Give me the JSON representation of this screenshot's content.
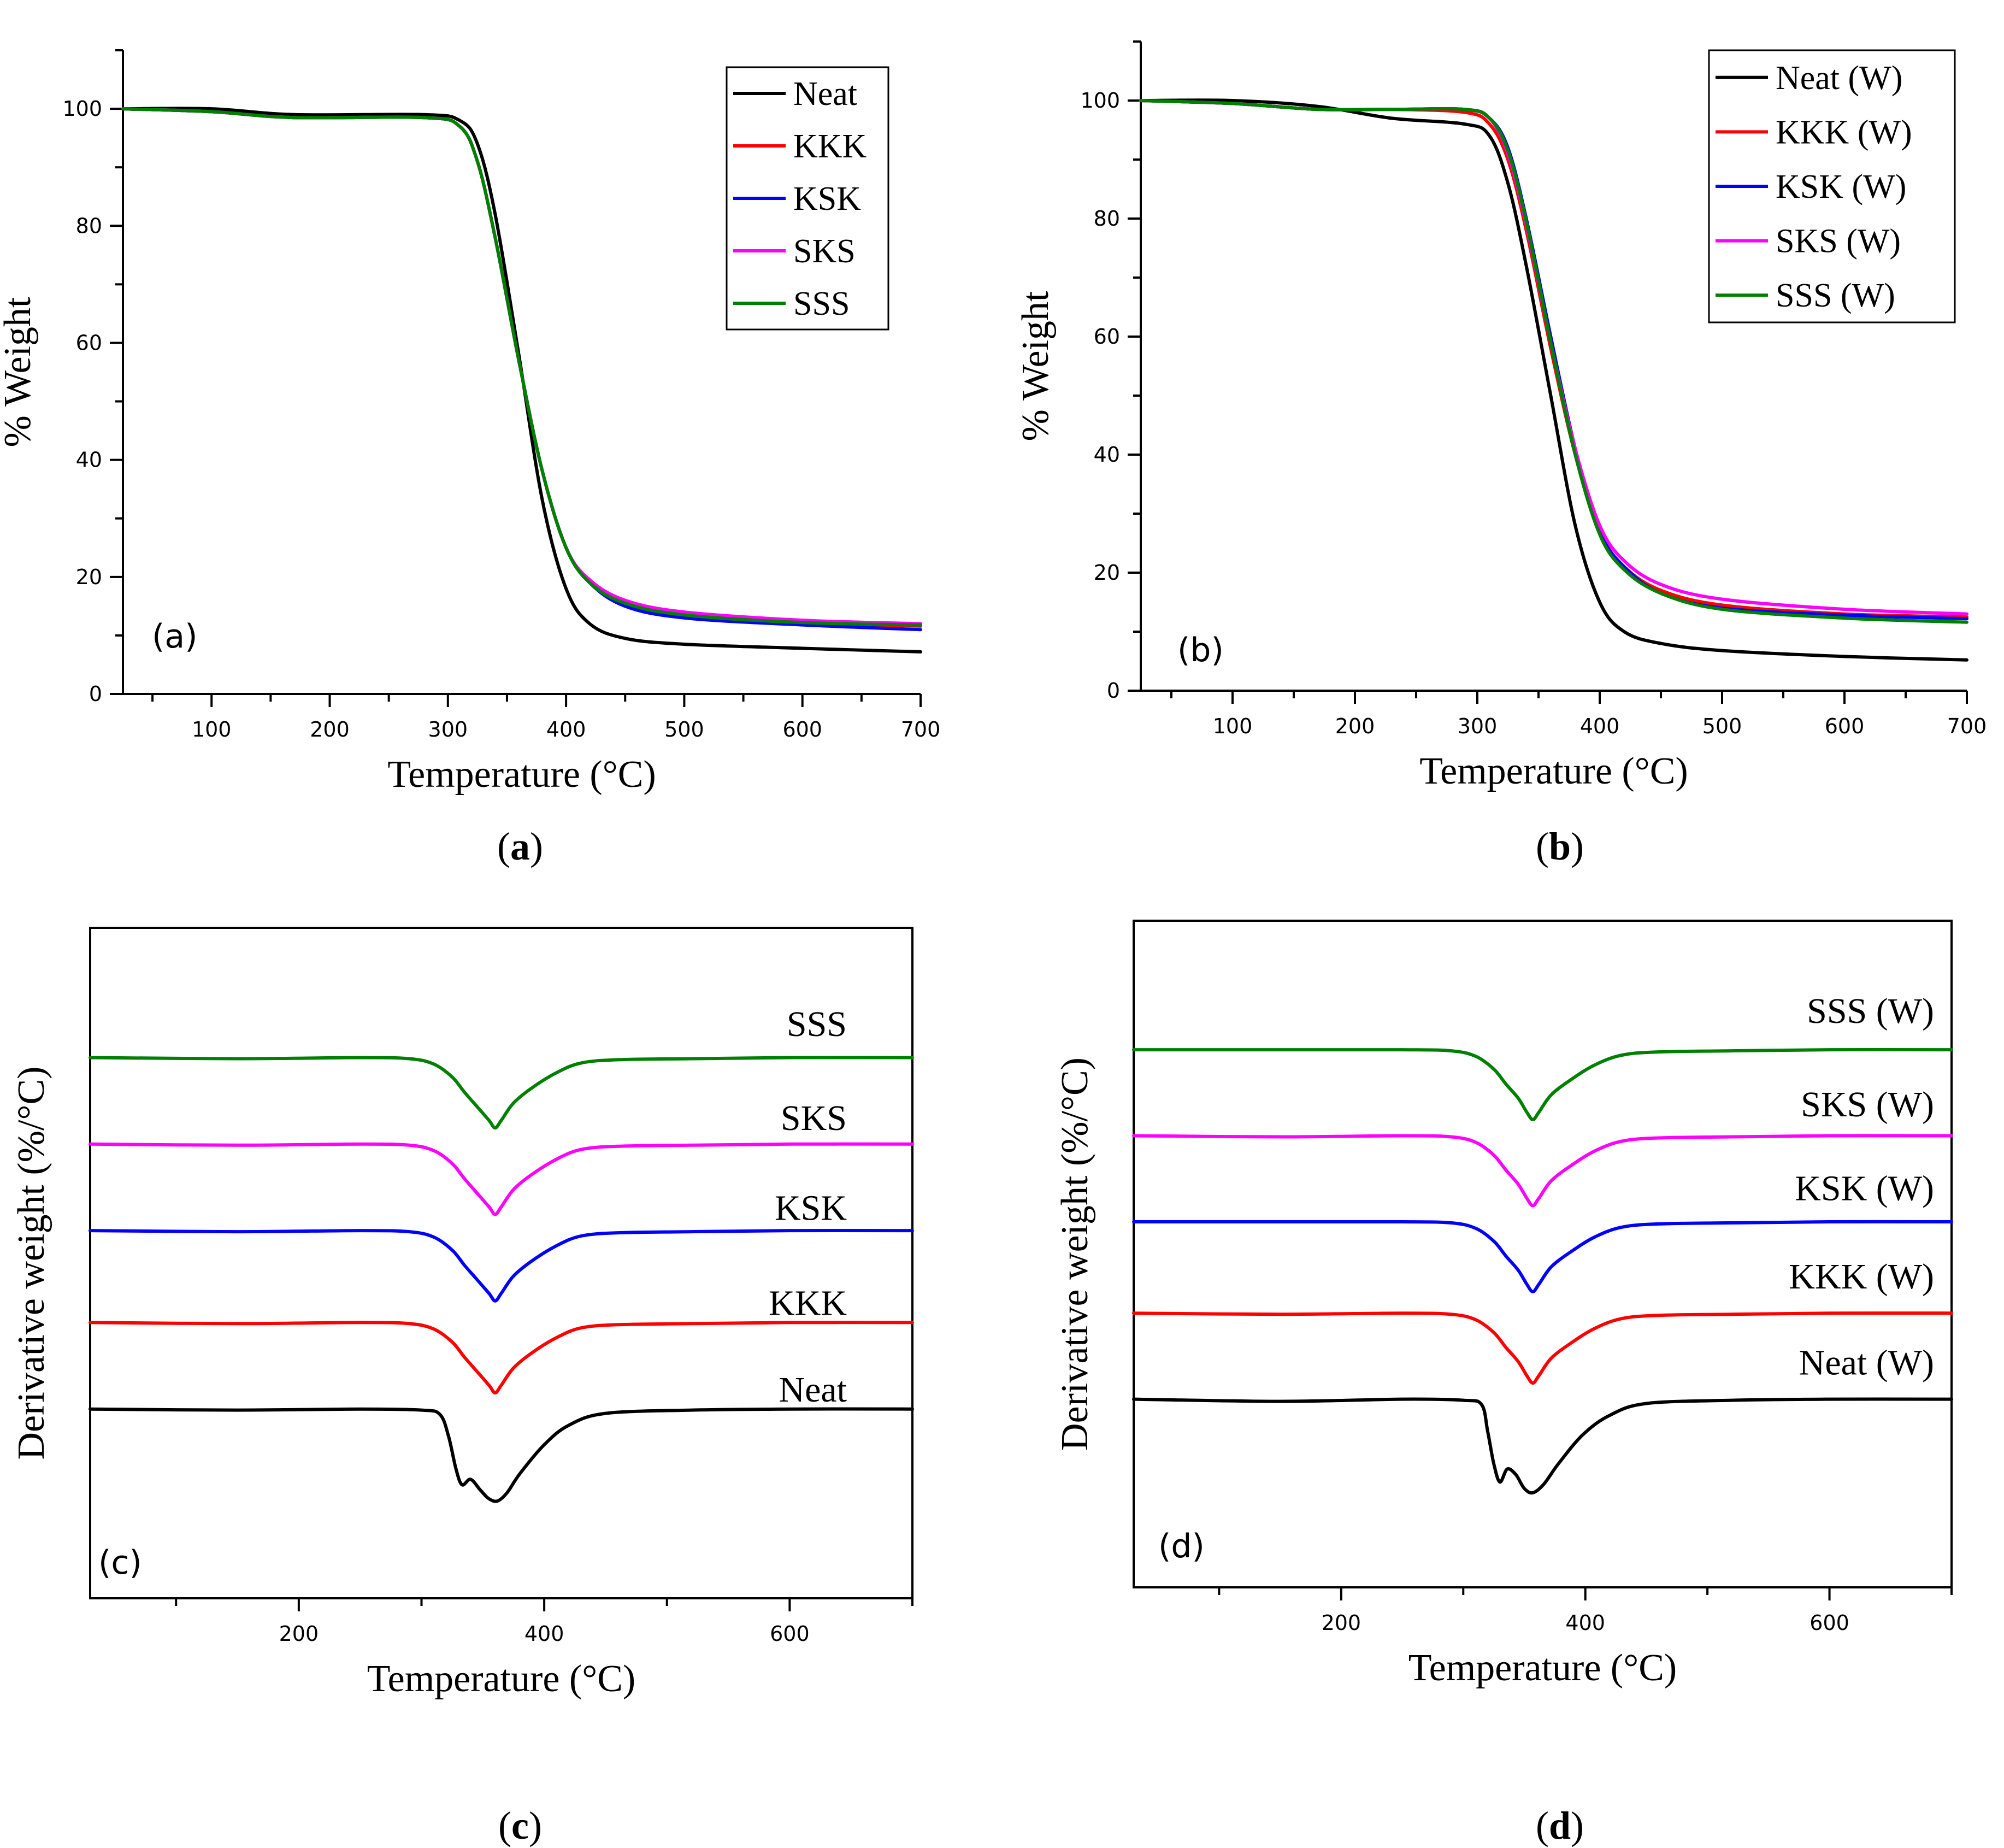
{
  "figure": {
    "captions": [
      {
        "paren_open": "(",
        "letter": "a",
        "paren_close": ")"
      },
      {
        "paren_open": "(",
        "letter": "b",
        "paren_close": ")"
      },
      {
        "paren_open": "(",
        "letter": "c",
        "paren_close": ")"
      },
      {
        "paren_open": "(",
        "letter": "d",
        "paren_close": ")"
      }
    ]
  },
  "colors": {
    "black": "#000000",
    "red": "#ff0000",
    "blue": "#0000ff",
    "magenta": "#ff00ff",
    "green": "#008000"
  },
  "chart_data": [
    {
      "id": "a",
      "type": "line",
      "panel_tag": "(a)",
      "xlabel": "Temperature (°C)",
      "ylabel": "% Weight",
      "xlim": [
        25,
        700
      ],
      "ylim": [
        0,
        110
      ],
      "xticks": [
        100,
        200,
        300,
        400,
        500,
        600,
        700
      ],
      "yticks": [
        0,
        20,
        40,
        60,
        80,
        100
      ],
      "legend": "top-right",
      "grid": false,
      "series": [
        {
          "name": "Neat",
          "color": "#000000",
          "x": [
            25,
            100,
            170,
            280,
            310,
            325,
            340,
            360,
            380,
            400,
            420,
            450,
            500,
            600,
            700
          ],
          "y": [
            100,
            100,
            99,
            99,
            98,
            94,
            82,
            58,
            33,
            18,
            12,
            9.5,
            8.5,
            7.8,
            7.2
          ]
        },
        {
          "name": "KKK",
          "color": "#ff0000",
          "x": [
            25,
            100,
            170,
            280,
            310,
            325,
            340,
            360,
            380,
            400,
            420,
            450,
            500,
            600,
            700
          ],
          "y": [
            100,
            99.5,
            98.5,
            98.5,
            97,
            91,
            78,
            57,
            38,
            25,
            19,
            15.5,
            13.5,
            12.2,
            11.6
          ]
        },
        {
          "name": "KSK",
          "color": "#0000ff",
          "x": [
            25,
            100,
            170,
            280,
            310,
            325,
            340,
            360,
            380,
            400,
            420,
            450,
            500,
            600,
            700
          ],
          "y": [
            100,
            99.5,
            98.5,
            98.5,
            97,
            91,
            78,
            57,
            38,
            25,
            19,
            15,
            13,
            11.8,
            11
          ]
        },
        {
          "name": "SKS",
          "color": "#ff00ff",
          "x": [
            25,
            100,
            170,
            280,
            310,
            325,
            340,
            360,
            380,
            400,
            420,
            450,
            500,
            600,
            700
          ],
          "y": [
            100,
            99.5,
            98.5,
            98.5,
            97,
            91,
            78,
            57,
            38,
            25,
            19.5,
            16,
            14,
            12.6,
            12
          ]
        },
        {
          "name": "SSS",
          "color": "#008000",
          "x": [
            25,
            100,
            170,
            280,
            310,
            325,
            340,
            360,
            380,
            400,
            420,
            450,
            500,
            600,
            700
          ],
          "y": [
            100,
            99.5,
            98.5,
            98.5,
            97,
            91,
            78,
            57,
            38,
            25,
            19,
            15.5,
            13.5,
            12.2,
            11.8
          ]
        }
      ]
    },
    {
      "id": "b",
      "type": "line",
      "panel_tag": "(b)",
      "xlabel": "Temperature (°C)",
      "ylabel": "% Weight",
      "xlim": [
        25,
        700
      ],
      "ylim": [
        0,
        110
      ],
      "xticks": [
        100,
        200,
        300,
        400,
        500,
        600,
        700
      ],
      "yticks": [
        0,
        20,
        40,
        60,
        80,
        100
      ],
      "legend": "top-right",
      "grid": false,
      "series": [
        {
          "name": "Neat (W)",
          "color": "#000000",
          "x": [
            25,
            100,
            170,
            230,
            290,
            310,
            325,
            340,
            360,
            380,
            400,
            420,
            450,
            500,
            600,
            700
          ],
          "y": [
            100,
            100,
            99,
            97,
            96,
            94,
            86,
            72,
            50,
            28,
            15,
            10,
            8,
            6.8,
            5.8,
            5.2
          ]
        },
        {
          "name": "KKK (W)",
          "color": "#ff0000",
          "x": [
            25,
            100,
            170,
            230,
            290,
            310,
            325,
            340,
            360,
            380,
            400,
            420,
            450,
            500,
            600,
            700
          ],
          "y": [
            100,
            99.5,
            98.5,
            98.5,
            98,
            96,
            90,
            78,
            58,
            40,
            27,
            21,
            17,
            14.5,
            13,
            12.5
          ]
        },
        {
          "name": "KSK (W)",
          "color": "#0000ff",
          "x": [
            25,
            100,
            170,
            230,
            290,
            310,
            325,
            340,
            360,
            380,
            400,
            420,
            450,
            500,
            600,
            700
          ],
          "y": [
            100,
            99.5,
            98.5,
            98.5,
            98.5,
            97,
            92,
            80,
            60,
            41,
            27,
            21,
            16.5,
            14,
            12.8,
            12.2
          ]
        },
        {
          "name": "SKS (W)",
          "color": "#ff00ff",
          "x": [
            25,
            100,
            170,
            230,
            290,
            310,
            325,
            340,
            360,
            380,
            400,
            420,
            450,
            500,
            600,
            700
          ],
          "y": [
            100,
            99.5,
            98.5,
            98.5,
            98.5,
            97,
            91,
            79,
            59,
            41,
            28,
            22,
            18,
            15.5,
            13.8,
            13
          ]
        },
        {
          "name": "SSS (W)",
          "color": "#008000",
          "x": [
            25,
            100,
            170,
            230,
            290,
            310,
            325,
            340,
            360,
            380,
            400,
            420,
            450,
            500,
            600,
            700
          ],
          "y": [
            100,
            99.5,
            98.5,
            98.5,
            98.5,
            97,
            91.5,
            79.5,
            59,
            40,
            26.5,
            20.5,
            16.5,
            13.8,
            12.3,
            11.6
          ]
        }
      ]
    },
    {
      "id": "c",
      "type": "line",
      "panel_tag": "(c)",
      "xlabel": "Temperature (°C)",
      "ylabel": "Derivative weight (%/°C)",
      "xlim": [
        30,
        700
      ],
      "ylim": [
        0,
        6.2
      ],
      "xticks": [
        200,
        400,
        600
      ],
      "yticks": [],
      "legend": "labels-on-curves",
      "grid": false,
      "series": [
        {
          "name": "SSS",
          "color": "#008000",
          "label_x": 575,
          "label_y": 5.2,
          "x": [
            30,
            150,
            250,
            290,
            310,
            325,
            335,
            345,
            355,
            360,
            365,
            375,
            390,
            410,
            430,
            460,
            520,
            600,
            700
          ],
          "y": [
            5.0,
            4.99,
            5.0,
            4.99,
            4.94,
            4.82,
            4.68,
            4.55,
            4.42,
            4.35,
            4.42,
            4.58,
            4.72,
            4.86,
            4.95,
            4.98,
            4.99,
            5.0,
            5.0
          ]
        },
        {
          "name": "SKS",
          "color": "#ff00ff",
          "label_x": 575,
          "label_y": 4.33,
          "x": [
            30,
            150,
            250,
            290,
            310,
            325,
            335,
            345,
            355,
            360,
            365,
            375,
            390,
            410,
            430,
            460,
            520,
            600,
            700
          ],
          "y": [
            4.2,
            4.19,
            4.2,
            4.19,
            4.14,
            4.02,
            3.88,
            3.75,
            3.62,
            3.55,
            3.62,
            3.78,
            3.92,
            4.06,
            4.15,
            4.18,
            4.19,
            4.2,
            4.2
          ]
        },
        {
          "name": "KSK",
          "color": "#0000ff",
          "label_x": 575,
          "label_y": 3.5,
          "x": [
            30,
            150,
            250,
            290,
            310,
            325,
            335,
            345,
            355,
            360,
            365,
            375,
            390,
            410,
            430,
            460,
            520,
            600,
            700
          ],
          "y": [
            3.4,
            3.39,
            3.4,
            3.39,
            3.34,
            3.22,
            3.08,
            2.95,
            2.82,
            2.75,
            2.82,
            2.98,
            3.12,
            3.26,
            3.35,
            3.38,
            3.39,
            3.4,
            3.4
          ]
        },
        {
          "name": "KKK",
          "color": "#ff0000",
          "label_x": 575,
          "label_y": 2.62,
          "x": [
            30,
            150,
            250,
            290,
            310,
            325,
            335,
            345,
            355,
            360,
            365,
            375,
            390,
            410,
            430,
            460,
            520,
            600,
            700
          ],
          "y": [
            2.55,
            2.54,
            2.55,
            2.54,
            2.49,
            2.37,
            2.23,
            2.1,
            1.97,
            1.9,
            1.97,
            2.13,
            2.27,
            2.41,
            2.5,
            2.53,
            2.54,
            2.55,
            2.55
          ]
        },
        {
          "name": "Neat",
          "color": "#000000",
          "label_x": 575,
          "label_y": 1.82,
          "x": [
            30,
            150,
            250,
            300,
            315,
            322,
            328,
            333,
            340,
            348,
            355,
            362,
            370,
            380,
            400,
            420,
            450,
            520,
            600,
            700
          ],
          "y": [
            1.75,
            1.74,
            1.75,
            1.74,
            1.7,
            1.5,
            1.2,
            1.05,
            1.1,
            1.0,
            0.92,
            0.9,
            0.98,
            1.15,
            1.42,
            1.6,
            1.71,
            1.74,
            1.75,
            1.75
          ]
        }
      ]
    },
    {
      "id": "d",
      "type": "line",
      "panel_tag": "(d)",
      "xlabel": "Temperature (°C)",
      "ylabel": "Derivative weight (%/°C)",
      "xlim": [
        30,
        700
      ],
      "ylim": [
        0,
        6.2
      ],
      "xticks": [
        200,
        400,
        600
      ],
      "yticks": [],
      "legend": "labels-on-curves",
      "grid": false,
      "series": [
        {
          "name": "SSS (W)",
          "color": "#008000",
          "label_x": 510,
          "label_y": 5.25,
          "x": [
            30,
            150,
            250,
            290,
            310,
            325,
            335,
            345,
            352,
            357,
            362,
            372,
            388,
            408,
            430,
            460,
            520,
            600,
            700
          ],
          "y": [
            5.0,
            5.0,
            5.0,
            4.99,
            4.94,
            4.82,
            4.68,
            4.55,
            4.42,
            4.35,
            4.42,
            4.58,
            4.72,
            4.86,
            4.95,
            4.98,
            4.99,
            5.0,
            5.0
          ]
        },
        {
          "name": "SKS (W)",
          "color": "#ff00ff",
          "label_x": 510,
          "label_y": 4.38,
          "x": [
            30,
            150,
            250,
            290,
            310,
            325,
            335,
            345,
            352,
            357,
            362,
            372,
            388,
            408,
            430,
            460,
            520,
            600,
            700
          ],
          "y": [
            4.2,
            4.19,
            4.2,
            4.19,
            4.14,
            4.02,
            3.88,
            3.75,
            3.62,
            3.55,
            3.62,
            3.78,
            3.92,
            4.06,
            4.15,
            4.18,
            4.19,
            4.2,
            4.2
          ]
        },
        {
          "name": "KSK (W)",
          "color": "#0000ff",
          "label_x": 510,
          "label_y": 3.6,
          "x": [
            30,
            150,
            250,
            290,
            310,
            325,
            335,
            345,
            352,
            357,
            362,
            372,
            388,
            408,
            430,
            460,
            520,
            600,
            700
          ],
          "y": [
            3.4,
            3.4,
            3.4,
            3.39,
            3.34,
            3.22,
            3.08,
            2.95,
            2.82,
            2.75,
            2.82,
            2.98,
            3.12,
            3.26,
            3.35,
            3.38,
            3.39,
            3.4,
            3.4
          ]
        },
        {
          "name": "KKK (W)",
          "color": "#ff0000",
          "label_x": 510,
          "label_y": 2.78,
          "x": [
            30,
            150,
            250,
            290,
            310,
            325,
            335,
            345,
            352,
            357,
            362,
            372,
            388,
            408,
            430,
            460,
            520,
            600,
            700
          ],
          "y": [
            2.55,
            2.54,
            2.55,
            2.54,
            2.49,
            2.37,
            2.23,
            2.1,
            1.97,
            1.9,
            1.97,
            2.13,
            2.27,
            2.41,
            2.5,
            2.53,
            2.54,
            2.55,
            2.55
          ]
        },
        {
          "name": "Neat (W)",
          "color": "#000000",
          "label_x": 510,
          "label_y": 1.98,
          "x": [
            30,
            150,
            250,
            300,
            315,
            320,
            325,
            330,
            336,
            343,
            350,
            357,
            366,
            378,
            398,
            420,
            450,
            520,
            600,
            700
          ],
          "y": [
            1.75,
            1.73,
            1.75,
            1.74,
            1.7,
            1.45,
            1.15,
            0.98,
            1.1,
            1.05,
            0.92,
            0.88,
            0.96,
            1.15,
            1.42,
            1.6,
            1.71,
            1.74,
            1.75,
            1.75
          ]
        }
      ]
    }
  ]
}
